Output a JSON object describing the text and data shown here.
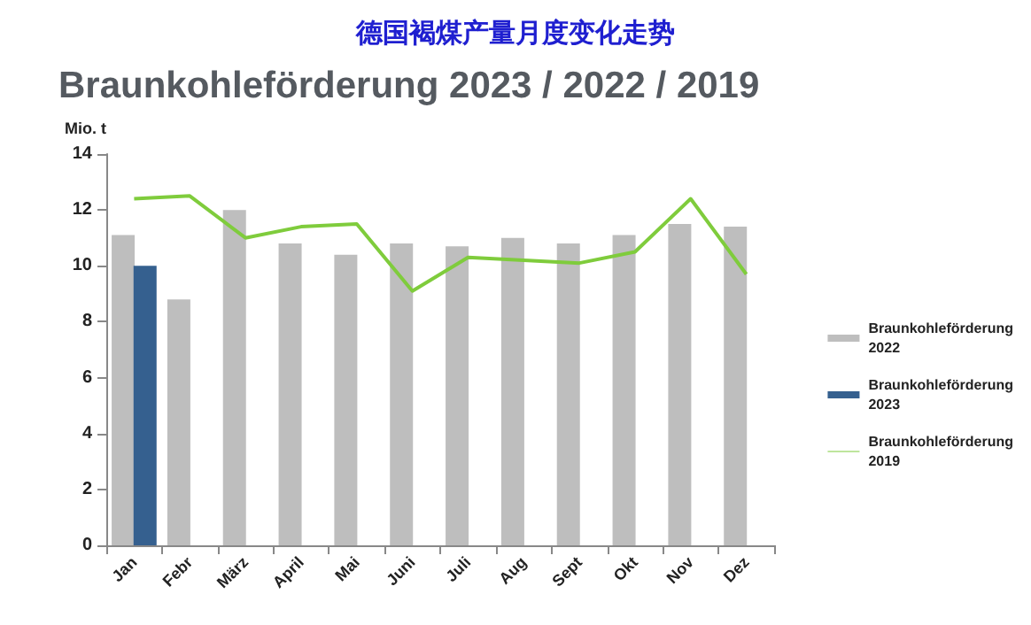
{
  "chart_data": {
    "type": "bar",
    "title": "德国褐煤产量月度变化走势",
    "subtitle": "Braunkohleförderung 2023 / 2022 / 2019",
    "ylabel": "Mio. t",
    "categories": [
      "Jan",
      "Febr",
      "März",
      "April",
      "Mai",
      "Juni",
      "Juli",
      "Aug",
      "Sept",
      "Okt",
      "Nov",
      "Dez"
    ],
    "series": [
      {
        "name": "Braunkohleförderung 2022",
        "color": "#bebebe",
        "values": [
          11.1,
          8.8,
          12.0,
          10.8,
          10.4,
          10.8,
          10.7,
          11.0,
          10.8,
          11.1,
          11.5,
          11.4
        ]
      },
      {
        "name": "Braunkohleförderung 2023",
        "color": "#35608f",
        "values": [
          10.0,
          null,
          null,
          null,
          null,
          null,
          null,
          null,
          null,
          null,
          null,
          null
        ]
      },
      {
        "name": "Braunkohleförderung 2019",
        "type": "line",
        "color": "#7fcc3c",
        "values": [
          12.4,
          12.5,
          11.0,
          11.4,
          11.5,
          9.1,
          10.3,
          10.2,
          10.1,
          10.5,
          12.4,
          9.7
        ]
      }
    ],
    "ylim": [
      0,
      14
    ],
    "yticks": [
      0,
      2,
      4,
      6,
      8,
      10,
      12,
      14
    ],
    "grid": false,
    "legend": "right",
    "marker": "none",
    "line_style": "solid"
  }
}
